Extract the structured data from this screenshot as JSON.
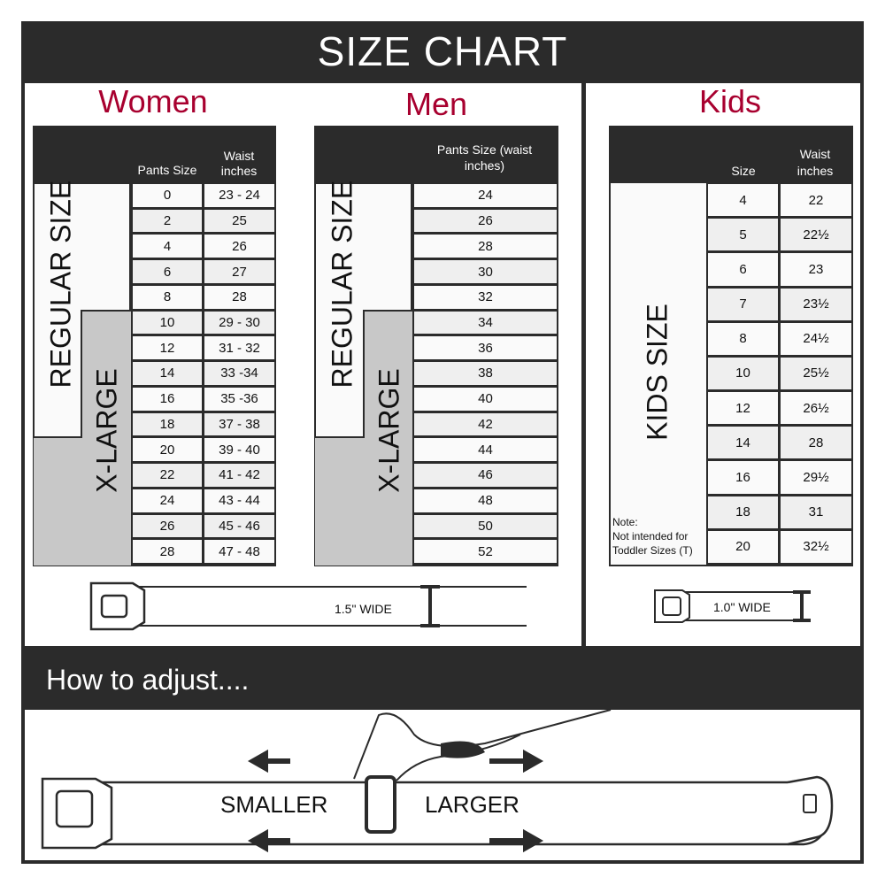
{
  "title": "SIZE CHART",
  "women": {
    "heading": "Women",
    "col1": "Pants Size",
    "col2": "Waist inches",
    "regular_label": "REGULAR SIZE",
    "xlarge_label": "X-LARGE",
    "rows": [
      [
        "0",
        "23 - 24"
      ],
      [
        "2",
        "25"
      ],
      [
        "4",
        "26"
      ],
      [
        "6",
        "27"
      ],
      [
        "8",
        "28"
      ],
      [
        "10",
        "29 - 30"
      ],
      [
        "12",
        "31 - 32"
      ],
      [
        "14",
        "33 -34"
      ],
      [
        "16",
        "35 -36"
      ],
      [
        "18",
        "37 - 38"
      ],
      [
        "20",
        "39 - 40"
      ],
      [
        "22",
        "41 - 42"
      ],
      [
        "24",
        "43 - 44"
      ],
      [
        "26",
        "45 - 46"
      ],
      [
        "28",
        "47 - 48"
      ]
    ],
    "belt_width": "1.5\" WIDE"
  },
  "men": {
    "heading": "Men",
    "col1": "Pants Size (waist inches)",
    "regular_label": "REGULAR SIZE",
    "xlarge_label": "X-LARGE",
    "rows": [
      "24",
      "26",
      "28",
      "30",
      "32",
      "34",
      "36",
      "38",
      "40",
      "42",
      "44",
      "46",
      "48",
      "50",
      "52"
    ]
  },
  "kids": {
    "heading": "Kids",
    "col1": "Size",
    "col2": "Waist inches",
    "label": "KIDS SIZE",
    "note_title": "Note:",
    "note_text": "Not intended for Toddler Sizes (T)",
    "rows": [
      [
        "4",
        "22"
      ],
      [
        "5",
        "22½"
      ],
      [
        "6",
        "23"
      ],
      [
        "7",
        "23½"
      ],
      [
        "8",
        "24½"
      ],
      [
        "10",
        "25½"
      ],
      [
        "12",
        "26½"
      ],
      [
        "14",
        "28"
      ],
      [
        "16",
        "29½"
      ],
      [
        "18",
        "31"
      ],
      [
        "20",
        "32½"
      ]
    ],
    "belt_width": "1.0\" WIDE"
  },
  "adjust": {
    "title": "How to adjust....",
    "smaller": "SMALLER",
    "larger": "LARGER"
  },
  "colors": {
    "accent": "#a8002f",
    "dark": "#2b2b2b",
    "xlarge_fill": "#c8c8c8"
  }
}
